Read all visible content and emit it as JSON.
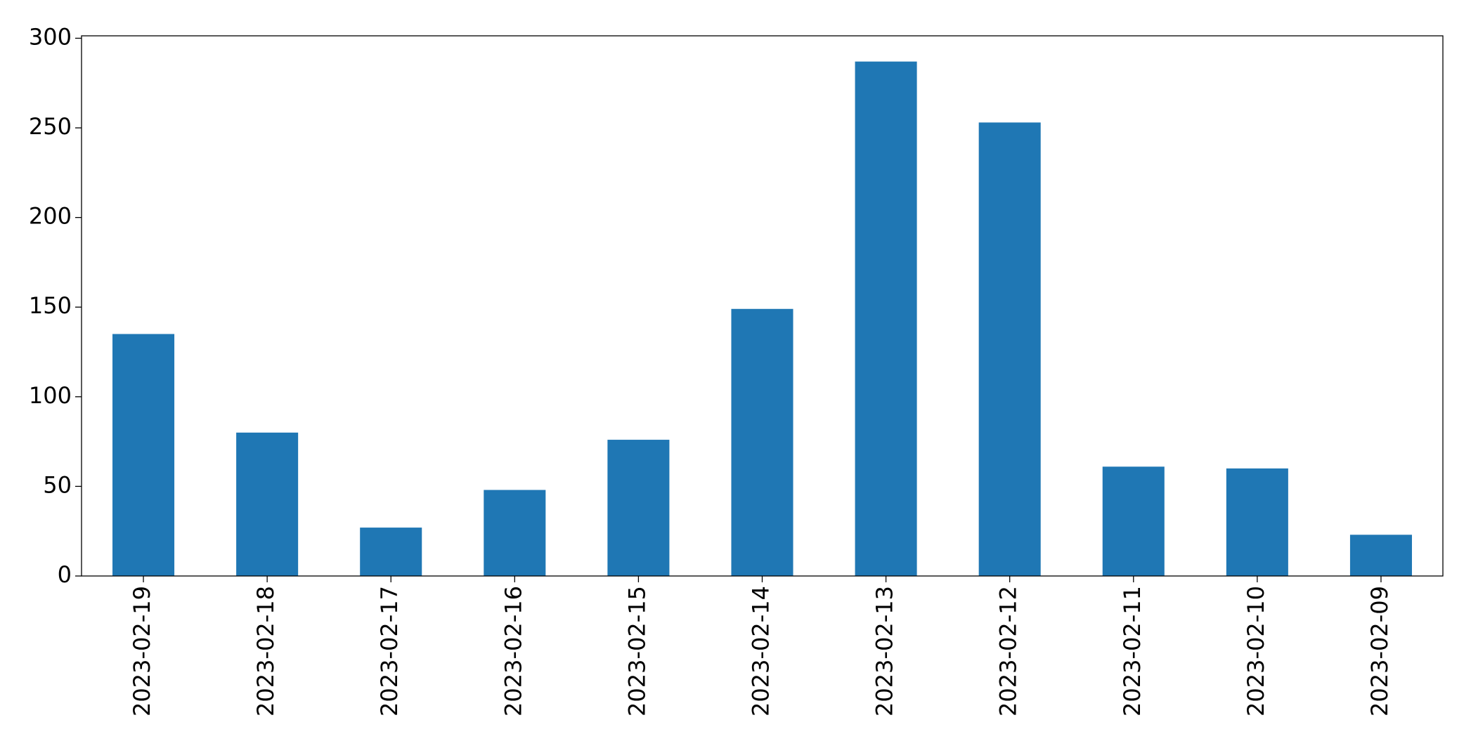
{
  "chart_data": {
    "type": "bar",
    "categories": [
      "2023-02-19",
      "2023-02-18",
      "2023-02-17",
      "2023-02-16",
      "2023-02-15",
      "2023-02-14",
      "2023-02-13",
      "2023-02-12",
      "2023-02-11",
      "2023-02-10",
      "2023-02-09"
    ],
    "values": [
      135,
      80,
      27,
      48,
      76,
      149,
      287,
      253,
      61,
      60,
      23
    ],
    "color": "#1f77b4",
    "ylim": [
      0,
      301.35
    ],
    "yticks": [
      0,
      50,
      100,
      150,
      200,
      250,
      300
    ],
    "grid": false
  }
}
